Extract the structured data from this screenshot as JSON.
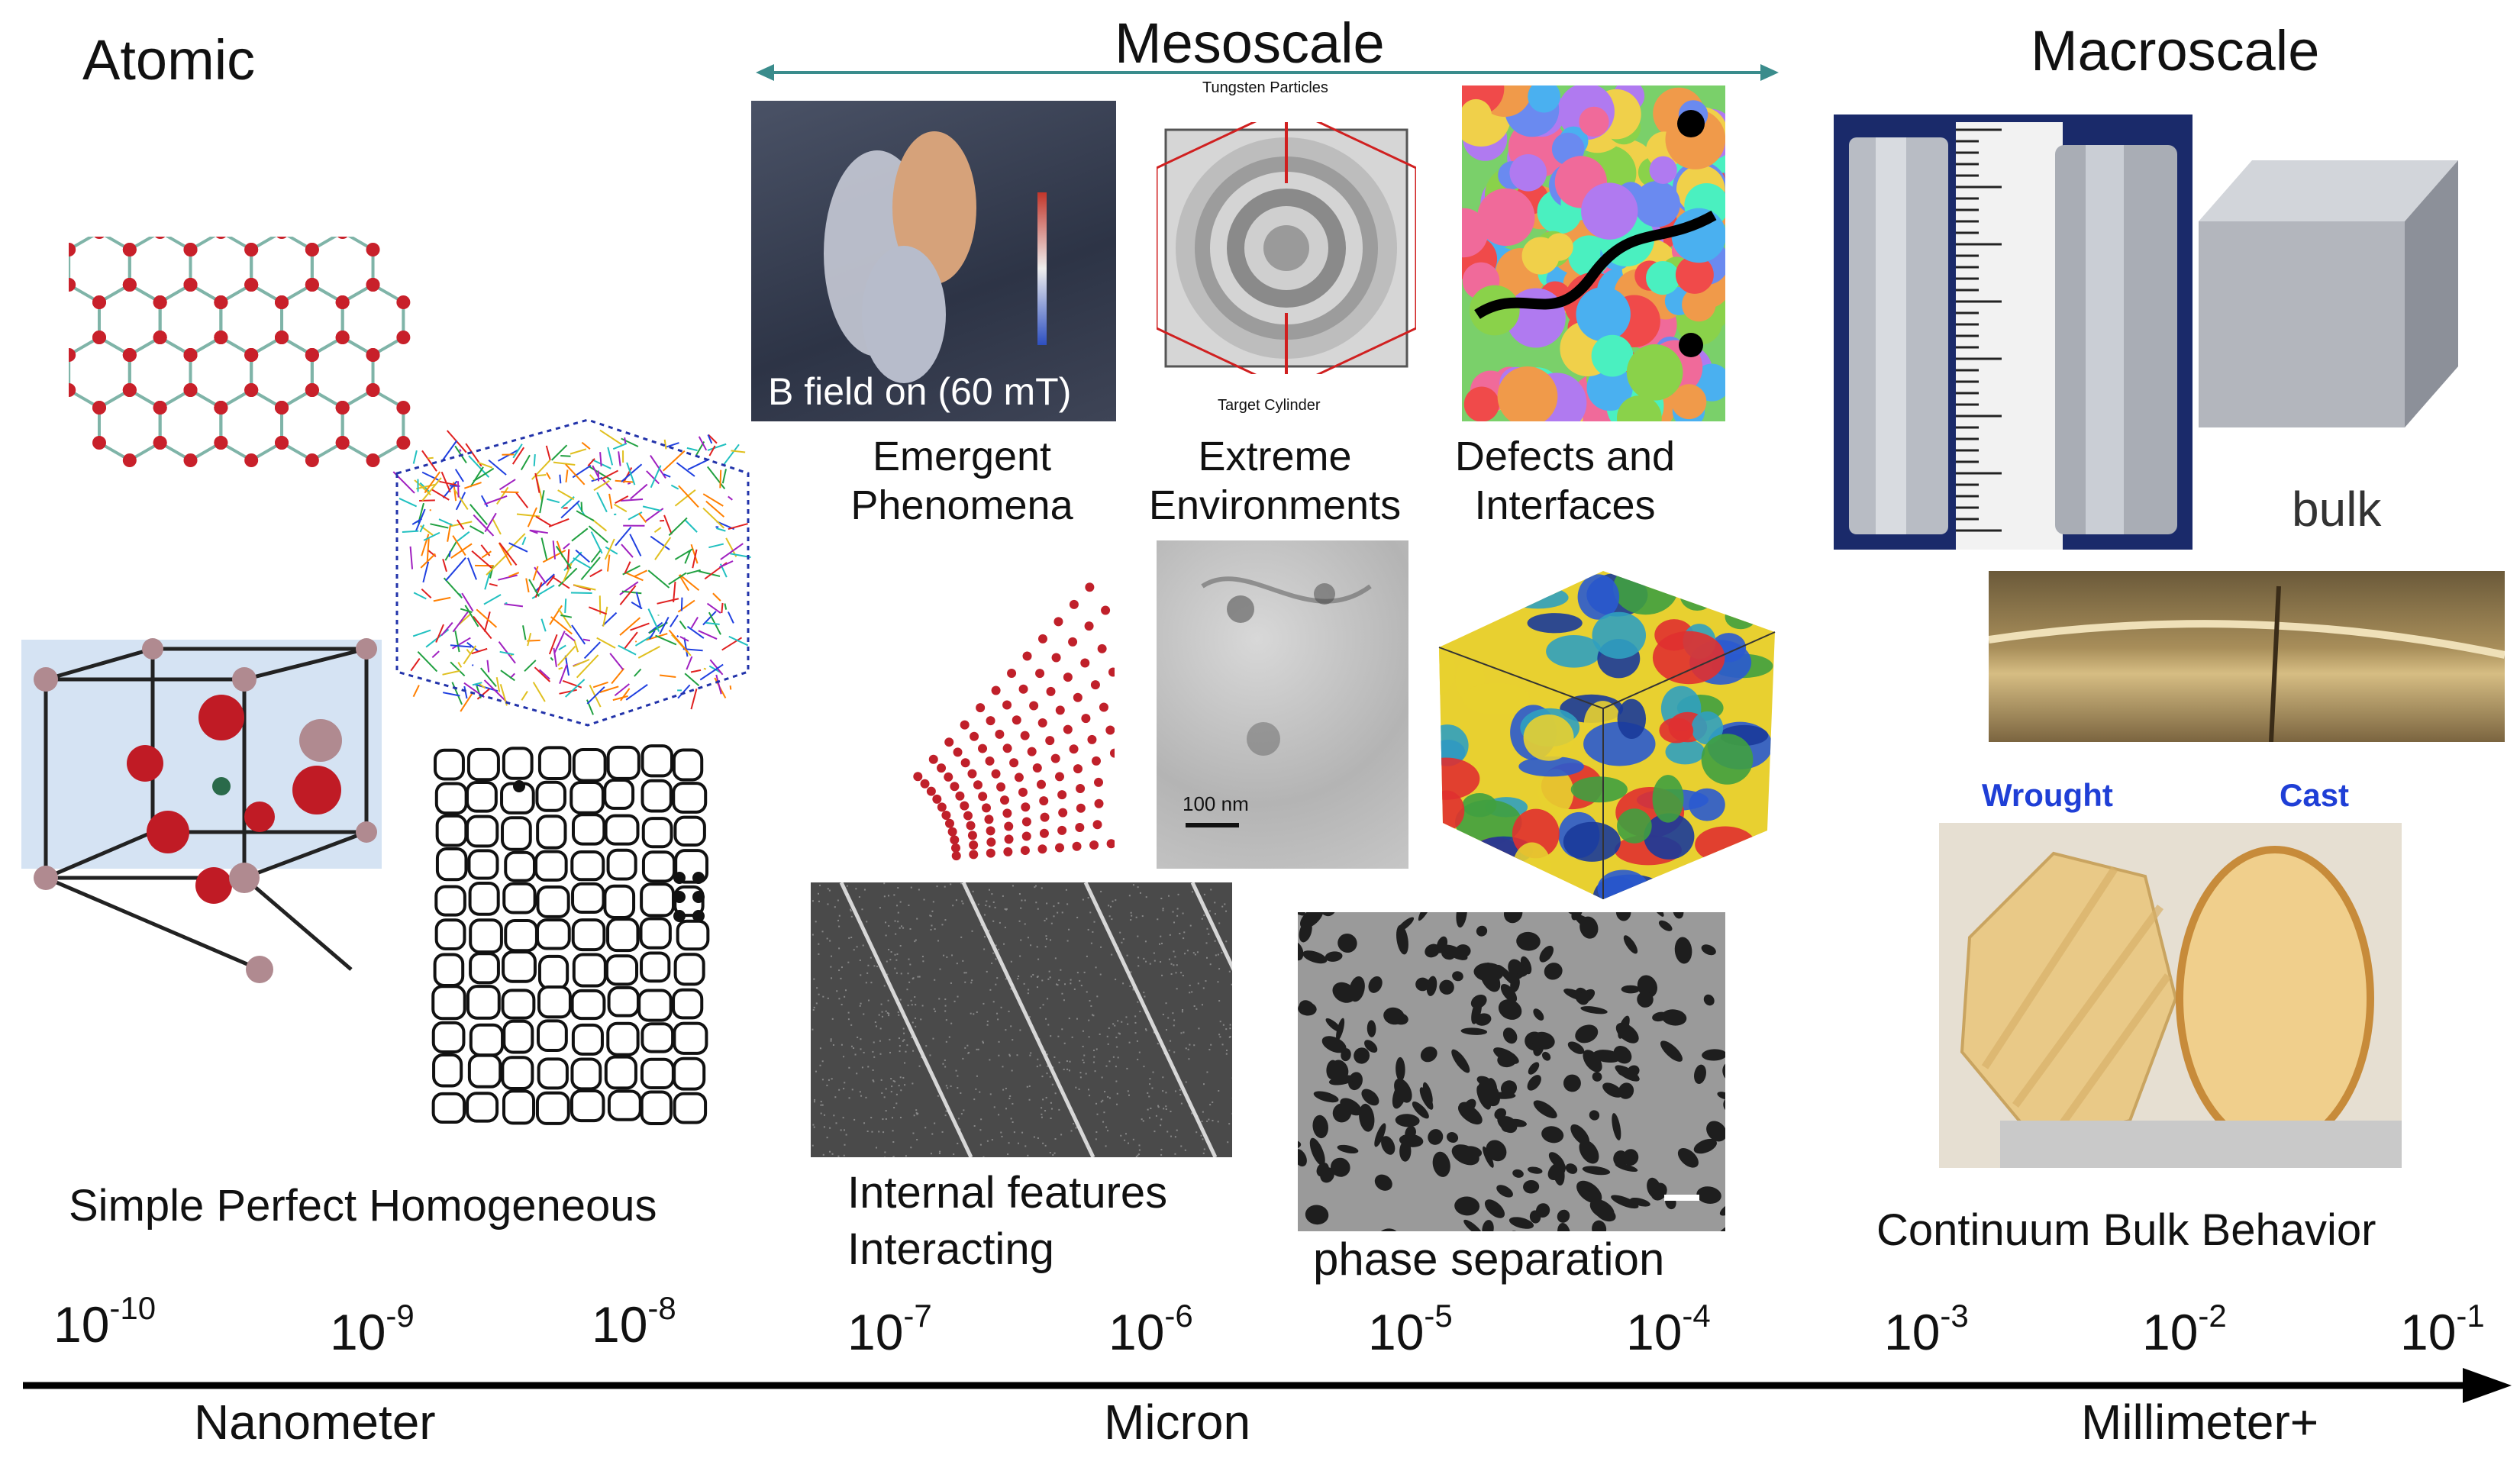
{
  "headings": {
    "atomic": "Atomic",
    "mesoscale": "Mesoscale",
    "macroscale": "Macroscale"
  },
  "captions": {
    "emergent": [
      "Emergent",
      "Phenomena"
    ],
    "extreme": [
      "Extreme",
      "Environments"
    ],
    "defects": [
      "Defects and",
      "Interfaces"
    ],
    "simple": "Simple Perfect Homogeneous",
    "internal": [
      "Internal features",
      "Interacting"
    ],
    "phase": "phase separation",
    "continuum": "Continuum Bulk Behavior",
    "bulk": "bulk"
  },
  "image_labels": {
    "bfield": "B field on (60 mT)",
    "tungsten": "Tungsten Particles",
    "target": "Target Cylinder",
    "scale_100nm": "100 nm",
    "wrought": "Wrought",
    "cast": "Cast"
  },
  "scale_axis": {
    "ticks": [
      {
        "base": "10",
        "exp": "-10"
      },
      {
        "base": "10",
        "exp": "-9"
      },
      {
        "base": "10",
        "exp": "-8"
      },
      {
        "base": "10",
        "exp": "-7"
      },
      {
        "base": "10",
        "exp": "-6"
      },
      {
        "base": "10",
        "exp": "-5"
      },
      {
        "base": "10",
        "exp": "-4"
      },
      {
        "base": "10",
        "exp": "-3"
      },
      {
        "base": "10",
        "exp": "-2"
      },
      {
        "base": "10",
        "exp": "-1"
      }
    ],
    "units": {
      "nanometer": "Nanometer",
      "micron": "Micron",
      "millimeter": "Millimeter+"
    }
  },
  "colors": {
    "arrow_teal": "#3a8c8c",
    "wrought_blue": "#1f3fd6",
    "atom_red": "#c0202a",
    "axis_black": "#000000"
  }
}
